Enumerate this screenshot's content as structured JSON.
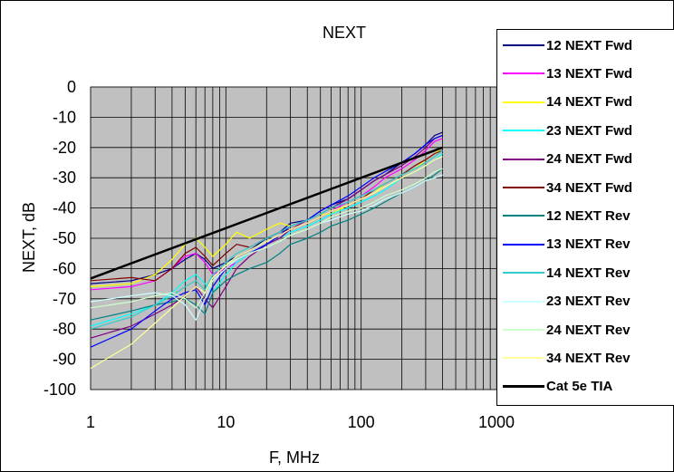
{
  "chart_data": {
    "type": "line",
    "title": "NEXT",
    "xlabel": "F, MHz",
    "ylabel": "NEXT, dB",
    "xscale": "log",
    "xlim": [
      1,
      1000
    ],
    "ylim": [
      -100,
      0
    ],
    "xticks": [
      1,
      10,
      100,
      1000
    ],
    "xtick_labels": [
      "1",
      "10",
      "100",
      "1000"
    ],
    "yticks": [
      0,
      -10,
      -20,
      -30,
      -40,
      -50,
      -60,
      -70,
      -80,
      -90,
      -100
    ],
    "ytick_labels": [
      "0",
      "-10",
      "-20",
      "-30",
      "-40",
      "-50",
      "-60",
      "-70",
      "-80",
      "-90",
      "-100"
    ],
    "grid": true,
    "plot_background": "#C0C0C0",
    "legend_position": "right",
    "series": [
      {
        "name": "12 NEXT  Fwd",
        "color": "#000080",
        "x": [
          1,
          2,
          3,
          4,
          5,
          6,
          7,
          8,
          10,
          12,
          15,
          20,
          25,
          30,
          40,
          50,
          60,
          80,
          100,
          125,
          150,
          200,
          250,
          300,
          350,
          400
        ],
        "y": [
          -65,
          -64,
          -62,
          -60,
          -57,
          -55,
          -57,
          -60,
          -58,
          -56,
          -54,
          -50,
          -48,
          -45,
          -44,
          -41,
          -39,
          -37,
          -34,
          -31,
          -29,
          -25,
          -22,
          -19,
          -16,
          -15
        ]
      },
      {
        "name": "13 NEXT  Fwd",
        "color": "#FF00FF",
        "x": [
          1,
          2,
          3,
          4,
          5,
          6,
          7,
          8,
          10,
          12,
          15,
          20,
          25,
          30,
          40,
          50,
          60,
          80,
          100,
          125,
          150,
          200,
          250,
          300,
          350,
          400
        ],
        "y": [
          -67,
          -66,
          -64,
          -60,
          -56,
          -55,
          -58,
          -62,
          -60,
          -58,
          -55,
          -52,
          -50,
          -47,
          -45,
          -43,
          -41,
          -38,
          -36,
          -33,
          -30,
          -27,
          -24,
          -21,
          -18,
          -17
        ]
      },
      {
        "name": "14 NEXT  Fwd",
        "color": "#FFFF00",
        "x": [
          1,
          2,
          3,
          4,
          5,
          6,
          7,
          8,
          10,
          12,
          15,
          20,
          25,
          30,
          40,
          50,
          60,
          80,
          100,
          125,
          150,
          200,
          250,
          300,
          350,
          400
        ],
        "y": [
          -66,
          -65,
          -62,
          -57,
          -52,
          -50,
          -53,
          -56,
          -52,
          -48,
          -50,
          -47,
          -45,
          -46,
          -44,
          -42,
          -42,
          -39,
          -37,
          -35,
          -32,
          -29,
          -27,
          -24,
          -22,
          -20
        ]
      },
      {
        "name": "23 NEXT  Fwd",
        "color": "#00FFFF",
        "x": [
          1,
          2,
          3,
          4,
          5,
          6,
          7,
          8,
          10,
          12,
          15,
          20,
          25,
          30,
          40,
          50,
          60,
          80,
          100,
          125,
          150,
          200,
          250,
          300,
          350,
          400
        ],
        "y": [
          -79,
          -75,
          -72,
          -68,
          -64,
          -62,
          -65,
          -68,
          -62,
          -58,
          -55,
          -52,
          -50,
          -48,
          -46,
          -44,
          -42,
          -40,
          -38,
          -36,
          -34,
          -30,
          -28,
          -26,
          -24,
          -22
        ]
      },
      {
        "name": "24 NEXT  Fwd",
        "color": "#800080",
        "x": [
          1,
          2,
          3,
          4,
          5,
          6,
          7,
          8,
          10,
          12,
          15,
          20,
          25,
          30,
          40,
          50,
          60,
          80,
          100,
          125,
          150,
          200,
          250,
          300,
          350,
          400
        ],
        "y": [
          -83,
          -79,
          -75,
          -72,
          -69,
          -66,
          -70,
          -73,
          -66,
          -60,
          -56,
          -52,
          -50,
          -47,
          -44,
          -42,
          -40,
          -37,
          -34,
          -31,
          -29,
          -26,
          -23,
          -20,
          -17,
          -16
        ]
      },
      {
        "name": "34 NEXT  Fwd",
        "color": "#800000",
        "x": [
          1,
          2,
          3,
          4,
          5,
          6,
          7,
          8,
          10,
          12,
          15,
          20,
          25,
          30,
          40,
          50,
          60,
          80,
          100,
          125,
          150,
          200,
          250,
          300,
          350,
          400
        ],
        "y": [
          -64,
          -63,
          -64,
          -60,
          -55,
          -53,
          -56,
          -59,
          -55,
          -52,
          -53,
          -50,
          -48,
          -47,
          -45,
          -43,
          -41,
          -39,
          -37,
          -34,
          -32,
          -29,
          -26,
          -24,
          -22,
          -21
        ]
      },
      {
        "name": "12 NEXT  Rev",
        "color": "#008080",
        "x": [
          1,
          2,
          3,
          4,
          5,
          6,
          7,
          8,
          10,
          12,
          15,
          20,
          25,
          30,
          40,
          50,
          60,
          80,
          100,
          125,
          150,
          200,
          250,
          300,
          350,
          400
        ],
        "y": [
          -77,
          -74,
          -72,
          -71,
          -70,
          -72,
          -75,
          -68,
          -64,
          -62,
          -60,
          -58,
          -55,
          -52,
          -50,
          -48,
          -46,
          -44,
          -42,
          -40,
          -38,
          -35,
          -33,
          -31,
          -29,
          -27
        ]
      },
      {
        "name": "13 NEXT  Rev",
        "color": "#0000FF",
        "x": [
          1,
          2,
          3,
          4,
          5,
          6,
          7,
          8,
          10,
          12,
          15,
          20,
          25,
          30,
          40,
          50,
          60,
          80,
          100,
          125,
          150,
          200,
          250,
          300,
          350,
          400
        ],
        "y": [
          -86,
          -80,
          -74,
          -70,
          -68,
          -67,
          -72,
          -66,
          -60,
          -57,
          -55,
          -52,
          -49,
          -46,
          -44,
          -41,
          -39,
          -36,
          -33,
          -30,
          -28,
          -25,
          -22,
          -19,
          -17,
          -16
        ]
      },
      {
        "name": "14 NEXT  Rev",
        "color": "#33CCCC",
        "x": [
          1,
          2,
          3,
          4,
          5,
          6,
          7,
          8,
          10,
          12,
          15,
          20,
          25,
          30,
          40,
          50,
          60,
          80,
          100,
          125,
          150,
          200,
          250,
          300,
          350,
          400
        ],
        "y": [
          -80,
          -76,
          -72,
          -69,
          -66,
          -64,
          -67,
          -62,
          -58,
          -55,
          -53,
          -50,
          -48,
          -46,
          -44,
          -42,
          -40,
          -38,
          -36,
          -34,
          -32,
          -29,
          -27,
          -25,
          -23,
          -21
        ]
      },
      {
        "name": "23 NEXT  Rev",
        "color": "#CCFFFF",
        "x": [
          1,
          2,
          3,
          4,
          5,
          6,
          7,
          8,
          10,
          12,
          15,
          20,
          25,
          30,
          40,
          50,
          60,
          80,
          100,
          125,
          150,
          200,
          250,
          300,
          350,
          400
        ],
        "y": [
          -71,
          -69,
          -68,
          -69,
          -72,
          -77,
          -70,
          -64,
          -60,
          -57,
          -55,
          -53,
          -51,
          -49,
          -47,
          -45,
          -44,
          -42,
          -41,
          -39,
          -37,
          -35,
          -33,
          -31,
          -30,
          -29
        ]
      },
      {
        "name": "24 NEXT  Rev",
        "color": "#CCFFCC",
        "x": [
          1,
          2,
          3,
          4,
          5,
          6,
          7,
          8,
          10,
          12,
          15,
          20,
          25,
          30,
          40,
          50,
          60,
          80,
          100,
          125,
          150,
          200,
          250,
          300,
          350,
          400
        ],
        "y": [
          -73,
          -71,
          -69,
          -68,
          -70,
          -73,
          -68,
          -63,
          -59,
          -57,
          -55,
          -53,
          -51,
          -49,
          -47,
          -45,
          -43,
          -41,
          -40,
          -38,
          -36,
          -34,
          -32,
          -30,
          -28,
          -27
        ]
      },
      {
        "name": "34 NEXT  Rev",
        "color": "#FFFF99",
        "x": [
          1,
          2,
          3,
          4,
          5,
          6,
          7,
          8,
          10,
          12,
          15,
          20,
          25,
          30,
          40,
          50,
          60,
          80,
          100,
          125,
          150,
          200,
          250,
          300,
          350,
          400
        ],
        "y": [
          -93,
          -85,
          -78,
          -73,
          -69,
          -66,
          -68,
          -63,
          -59,
          -56,
          -54,
          -51,
          -49,
          -47,
          -45,
          -43,
          -41,
          -39,
          -37,
          -35,
          -33,
          -30,
          -28,
          -26,
          -24,
          -23
        ]
      },
      {
        "name": "Cat 5e TIA",
        "color": "#000000",
        "x": [
          1,
          400
        ],
        "y": [
          -63.3,
          -20
        ]
      }
    ]
  }
}
